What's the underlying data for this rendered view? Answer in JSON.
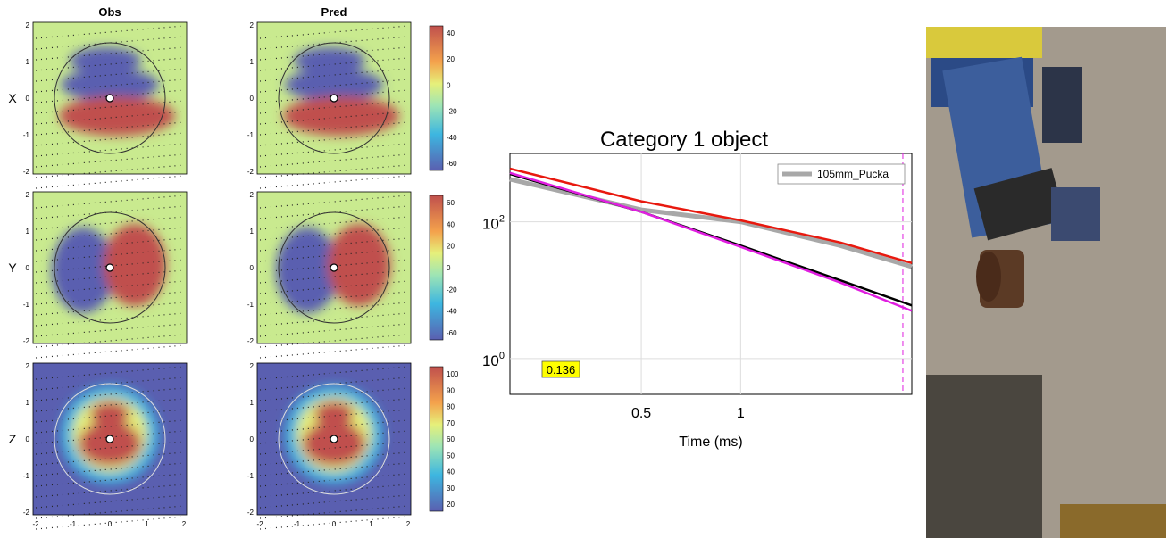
{
  "chart_data": [
    {
      "type": "heatmap",
      "panel_titles": [
        "Obs",
        "Pred"
      ],
      "row_labels": [
        "X",
        "Y",
        "Z"
      ],
      "xlim": [
        -2,
        2
      ],
      "ylim": [
        -2,
        2
      ],
      "x_ticks": [
        "-2",
        "-1",
        "0",
        "1",
        "2"
      ],
      "y_ticks": [
        "2",
        "1",
        "0",
        "-1",
        "-2"
      ],
      "colorbars": [
        {
          "row": "X",
          "range": [
            -70,
            50
          ],
          "ticks": [
            "40",
            "20",
            "0",
            "-20",
            "-40",
            "-60"
          ]
        },
        {
          "row": "Y",
          "range": [
            -70,
            70
          ],
          "ticks": [
            "60",
            "40",
            "20",
            "0",
            "-20",
            "-40",
            "-60"
          ]
        },
        {
          "row": "Z",
          "range": [
            15,
            100
          ],
          "ticks": [
            "100",
            "90",
            "80",
            "70",
            "60",
            "50",
            "40",
            "30",
            "20"
          ]
        }
      ],
      "colors": {
        "low": "#5a5fb0",
        "high": "#c0504d",
        "mid": "#e6f07a"
      }
    },
    {
      "type": "line",
      "title": "Category 1 object",
      "xlabel": "Time (ms)",
      "ylabel": "",
      "x_scale": "log",
      "y_scale": "log",
      "xlim": [
        0.2,
        3.3
      ],
      "ylim": [
        0.3,
        1000
      ],
      "x_ticks": [
        "0.5",
        "1"
      ],
      "y_ticks": [
        "10^2",
        "10^0"
      ],
      "legend": {
        "entries": [
          "105mm_Pucka"
        ],
        "position": "top-right"
      },
      "annotation": "0.136",
      "vline_x": 3.1,
      "series": [
        {
          "name": "105mm_Pucka",
          "color": "#a8a8a8",
          "x": [
            0.2,
            0.5,
            1,
            2,
            3.3
          ],
          "y": [
            420,
            150,
            100,
            45,
            22
          ]
        },
        {
          "color": "#e8190f",
          "x": [
            0.2,
            0.5,
            1,
            2,
            3.3
          ],
          "y": [
            600,
            200,
            105,
            50,
            25
          ]
        },
        {
          "color": "#000000",
          "x": [
            0.2,
            0.5,
            1,
            2,
            3.3
          ],
          "y": [
            500,
            140,
            45,
            14,
            6
          ]
        },
        {
          "color": "#e01ee0",
          "x": [
            0.2,
            0.5,
            1,
            2,
            3.3
          ],
          "y": [
            520,
            140,
            43,
            13,
            5
          ]
        }
      ]
    }
  ]
}
